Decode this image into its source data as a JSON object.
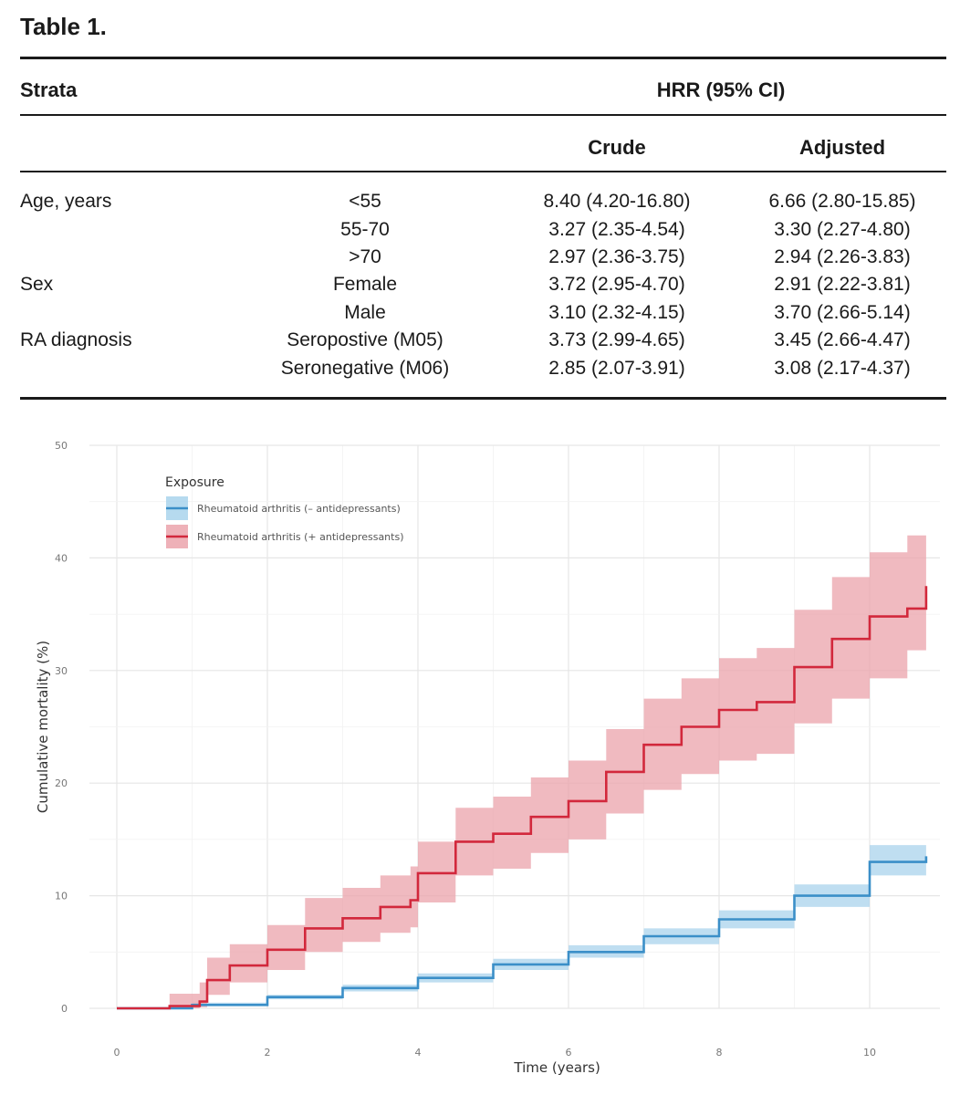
{
  "table": {
    "title": "Table 1.",
    "header": {
      "strata": "Strata",
      "hrr": "HRR (95% CI)",
      "crude": "Crude",
      "adjusted": "Adjusted"
    },
    "rows": [
      {
        "group": "Age, years",
        "stratum": "<55",
        "crude": "8.40 (4.20-16.80)",
        "adjusted": "6.66 (2.80-15.85)"
      },
      {
        "group": "",
        "stratum": "55-70",
        "crude": "3.27 (2.35-4.54)",
        "adjusted": "3.30 (2.27-4.80)"
      },
      {
        "group": "",
        "stratum": ">70",
        "crude": "2.97 (2.36-3.75)",
        "adjusted": "2.94 (2.26-3.83)"
      },
      {
        "group": "Sex",
        "stratum": "Female",
        "crude": "3.72 (2.95-4.70)",
        "adjusted": "2.91 (2.22-3.81)"
      },
      {
        "group": "",
        "stratum": "Male",
        "crude": "3.10 (2.32-4.15)",
        "adjusted": "3.70 (2.66-5.14)"
      },
      {
        "group": "RA diagnosis",
        "stratum": "Seropostive (M05)",
        "crude": "3.73 (2.99-4.65)",
        "adjusted": "3.45 (2.66-4.47)"
      },
      {
        "group": "",
        "stratum": "Seronegative (M06)",
        "crude": "2.85 (2.07-3.91)",
        "adjusted": "3.08 (2.17-4.37)"
      }
    ]
  },
  "chart_data": {
    "type": "line",
    "title": "",
    "xlabel": "Time (years)",
    "ylabel": "Cumulative mortality (%)",
    "xlim": [
      0,
      10.8
    ],
    "ylim": [
      0,
      50
    ],
    "xticks": [
      "0",
      "2",
      "4",
      "6",
      "8",
      "10"
    ],
    "yticks": [
      "0",
      "10",
      "20",
      "30",
      "40",
      "50"
    ],
    "grid": true,
    "legend": {
      "title": "Exposure",
      "position": "top-left"
    },
    "series": [
      {
        "name": "Rheumatoid arthritis (– antidepressants)",
        "color": "#3b8fc8",
        "band_color": "#a9d3ec",
        "x": [
          0,
          1,
          2,
          3,
          4,
          5,
          6,
          7,
          8,
          9,
          10,
          10.75
        ],
        "y": [
          0,
          0.3,
          1.0,
          1.8,
          2.7,
          3.9,
          5.0,
          6.4,
          7.9,
          10.0,
          13.0,
          13.5
        ],
        "lower": [
          0,
          0.2,
          0.8,
          1.5,
          2.3,
          3.4,
          4.5,
          5.7,
          7.1,
          9.0,
          11.8,
          11.8
        ],
        "upper": [
          0,
          0.5,
          1.2,
          2.1,
          3.1,
          4.4,
          5.6,
          7.1,
          8.7,
          11.0,
          14.5,
          15.5
        ]
      },
      {
        "name": "Rheumatoid arthritis (+ antidepressants)",
        "color": "#d2283c",
        "band_color": "#eba3ab",
        "x": [
          0,
          0.7,
          1.1,
          1.2,
          1.5,
          2,
          2.5,
          3,
          3.5,
          3.9,
          4,
          4.5,
          5,
          5.5,
          6,
          6.5,
          7,
          7.5,
          8,
          8.5,
          9,
          9.5,
          10,
          10.5,
          10.75
        ],
        "y": [
          0,
          0.2,
          0.6,
          2.5,
          3.8,
          5.2,
          7.1,
          8.0,
          9.0,
          9.6,
          12.0,
          14.8,
          15.5,
          17.0,
          18.4,
          21.0,
          23.4,
          25.0,
          26.5,
          27.2,
          30.3,
          32.8,
          34.8,
          35.5,
          37.5
        ],
        "lower": [
          0,
          0,
          0.1,
          1.2,
          2.3,
          3.4,
          5.0,
          5.9,
          6.7,
          7.2,
          9.4,
          11.8,
          12.4,
          13.8,
          15.0,
          17.3,
          19.4,
          20.8,
          22.0,
          22.6,
          25.3,
          27.5,
          29.3,
          31.8,
          32.0
        ],
        "upper": [
          0,
          1.3,
          2.3,
          4.5,
          5.7,
          7.4,
          9.8,
          10.7,
          11.8,
          12.6,
          14.8,
          17.8,
          18.8,
          20.5,
          22.0,
          24.8,
          27.5,
          29.3,
          31.1,
          32.0,
          35.4,
          38.3,
          40.5,
          42.0,
          43.2
        ]
      }
    ]
  }
}
